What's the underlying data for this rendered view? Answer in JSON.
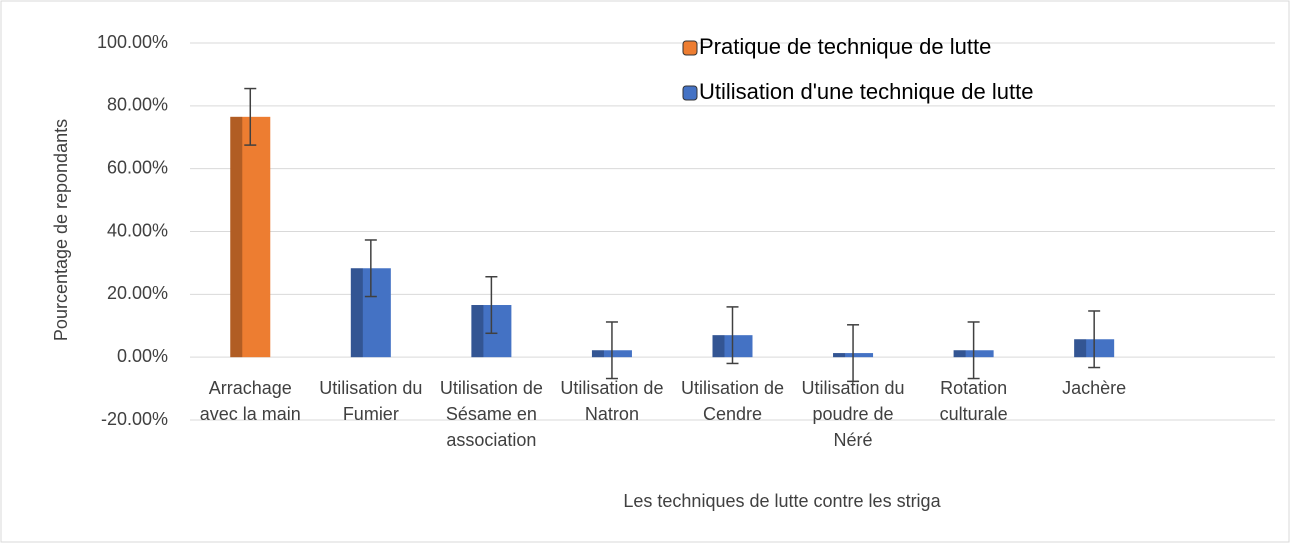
{
  "chart_data": {
    "type": "bar",
    "x_label": "Les techniques de lutte contre les striga",
    "y_label": "Pourcentage de repondants",
    "categories": [
      "Arrachage avec la main",
      "Utilisation du Fumier",
      "Utilisation de Sésame en association",
      "Utilisation de Natron",
      "Utilisation de Cendre",
      "Utilisation du poudre de Néré",
      "Rotation culturale",
      "Jachère",
      null
    ],
    "series": [
      {
        "name": "Pratique de technique de lutte",
        "color": "#ed7d31",
        "values": [
          76.5,
          null,
          null,
          null,
          null,
          null,
          null,
          null,
          null
        ],
        "errors": [
          9,
          null,
          null,
          null,
          null,
          null,
          null,
          null,
          null
        ]
      },
      {
        "name": "Utilisation d'une technique de lutte",
        "color": "#4472c4",
        "values": [
          null,
          28.3,
          16.6,
          2.2,
          7,
          1.3,
          2.2,
          5.7,
          null
        ],
        "errors": [
          null,
          9,
          9,
          9,
          9,
          9,
          9,
          9,
          null
        ]
      }
    ],
    "ylim": [
      -20,
      100
    ],
    "yticks": [
      {
        "value": -20,
        "label": "-20.00%"
      },
      {
        "value": 0,
        "label": "0.00%"
      },
      {
        "value": 20,
        "label": "20.00%"
      },
      {
        "value": 40,
        "label": "40.00%"
      },
      {
        "value": 60,
        "label": "60.00%"
      },
      {
        "value": 80,
        "label": "80.00%"
      },
      {
        "value": 100,
        "label": "100.00%"
      }
    ],
    "grid": true,
    "legend": "top-right"
  }
}
